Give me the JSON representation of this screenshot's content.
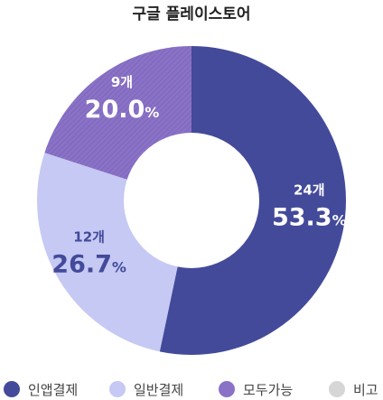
{
  "chart_data": {
    "type": "pie",
    "title": "구글 플레이스토어",
    "categories": [
      "인앱결제",
      "일반결제",
      "모두가능",
      "비고"
    ],
    "counts": [
      24,
      12,
      9,
      0
    ],
    "count_labels": [
      "24개",
      "12개",
      "9개",
      ""
    ],
    "values": [
      53.3,
      26.7,
      20.0,
      0
    ],
    "value_labels": [
      "53.3",
      "26.7",
      "20.0",
      ""
    ],
    "percent_sign": "%",
    "colors": [
      "#434a9a",
      "#c5c9f3",
      "#8a72c7",
      "#d6d6d6"
    ],
    "hatched": [
      false,
      false,
      true,
      false
    ],
    "donut": true,
    "legend": "bottom"
  }
}
